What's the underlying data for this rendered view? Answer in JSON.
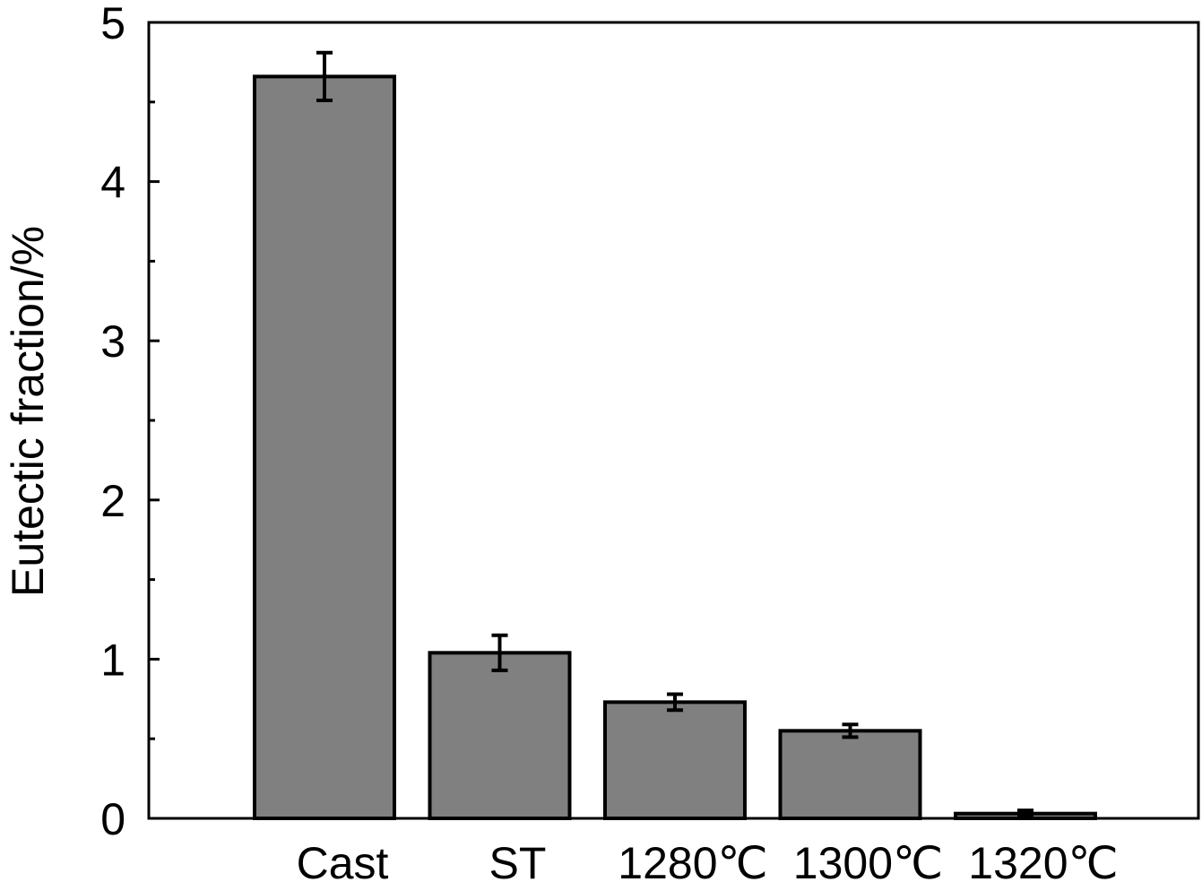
{
  "chart_data": {
    "type": "bar",
    "categories": [
      "Cast",
      "ST",
      "1280℃",
      "1300℃",
      "1320℃"
    ],
    "values": [
      4.66,
      1.04,
      0.73,
      0.55,
      0.03
    ],
    "errors": [
      0.15,
      0.11,
      0.05,
      0.04,
      0.02
    ],
    "ylabel": "Eutectic fraction/%",
    "xlabel": "",
    "ylim": [
      0,
      5
    ],
    "yticks": [
      0,
      1,
      2,
      3,
      4,
      5
    ],
    "grid": false,
    "bar_color": "#808080",
    "edge_color": "#000000"
  }
}
